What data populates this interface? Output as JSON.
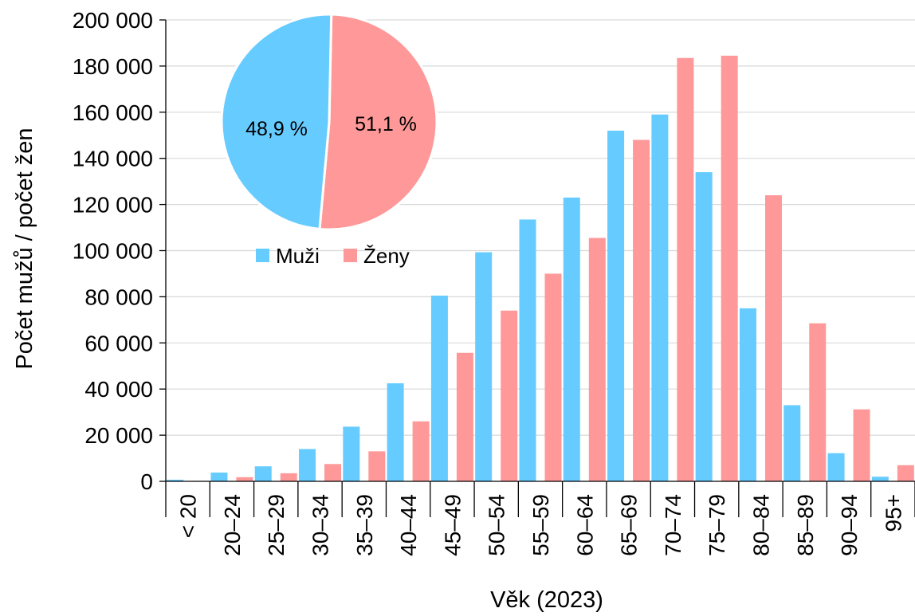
{
  "chart_data": [
    {
      "type": "bar",
      "xlabel": "Věk (2023)",
      "ylabel": "Počet mužů / počet žen",
      "ylim": [
        0,
        200000
      ],
      "yticks": [
        0,
        20000,
        40000,
        60000,
        80000,
        100000,
        120000,
        140000,
        160000,
        180000,
        200000
      ],
      "ytick_labels": [
        "0",
        "20 000",
        "40 000",
        "60 000",
        "80 000",
        "100 000",
        "120 000",
        "140 000",
        "160 000",
        "180 000",
        "200 000"
      ],
      "categories": [
        "< 20",
        "20–24",
        "25–29",
        "30–34",
        "35–39",
        "40–44",
        "45–49",
        "50–54",
        "55–59",
        "60–64",
        "65–69",
        "70–74",
        "75–79",
        "80–84",
        "85–89",
        "90–94",
        "95+"
      ],
      "grid": "horizontal",
      "series": [
        {
          "name": "Muži",
          "color": "#66CCFF",
          "values": [
            700,
            3800,
            6500,
            14000,
            23700,
            42500,
            80500,
            99300,
            113500,
            123000,
            152000,
            159000,
            134000,
            75000,
            33000,
            12200,
            2000
          ]
        },
        {
          "name": "Ženy",
          "color": "#FF9999",
          "values": [
            200,
            1800,
            3500,
            7500,
            13000,
            26000,
            55700,
            74000,
            90000,
            105500,
            148000,
            183500,
            184500,
            124000,
            68500,
            31200,
            7000
          ]
        }
      ]
    },
    {
      "type": "pie",
      "labels": [
        "Muži",
        "Ženy"
      ],
      "values": [
        48.9,
        51.1
      ],
      "value_labels": [
        "48,9 %",
        "51,1 %"
      ],
      "colors": [
        "#66CCFF",
        "#FF9999"
      ]
    }
  ],
  "legend": {
    "placement": "top-left",
    "items": [
      {
        "label": "Muži",
        "color": "#66CCFF"
      },
      {
        "label": "Ženy",
        "color": "#FF9999"
      }
    ]
  }
}
